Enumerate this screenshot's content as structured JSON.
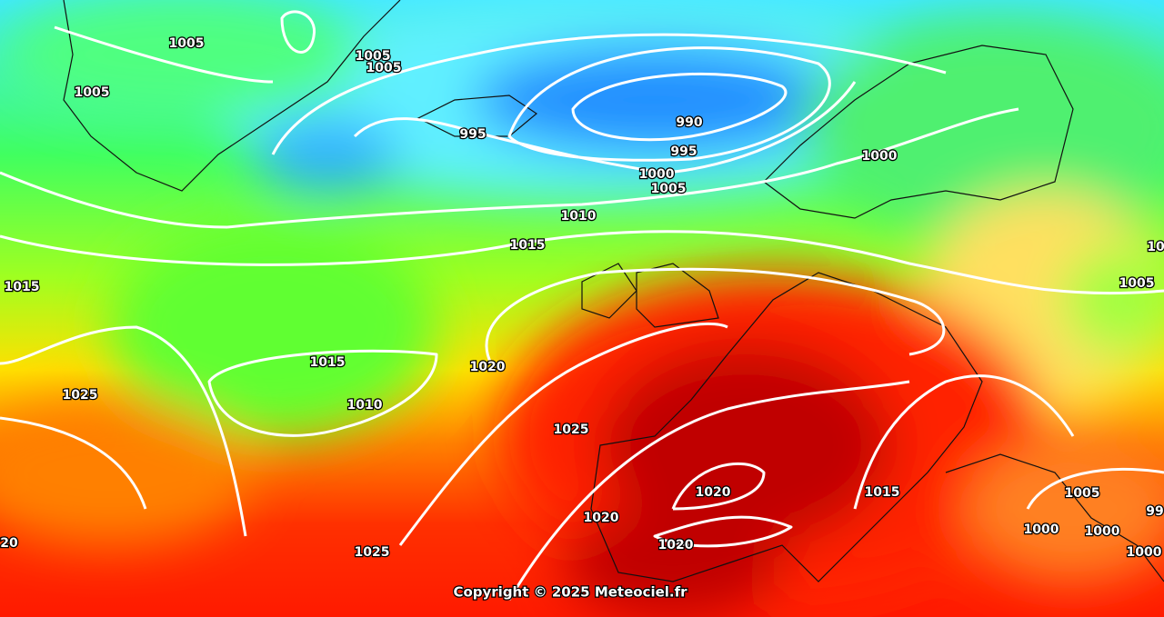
{
  "map": {
    "isobar_labels": [
      "1005",
      "1005",
      "1005",
      "1005",
      "995",
      "990",
      "995",
      "1000",
      "1005",
      "1000",
      "1010",
      "1015",
      "1015",
      "1005",
      "1015",
      "1020",
      "1010",
      "1025",
      "1025",
      "1020",
      "1015",
      "1020",
      "1020",
      "1025",
      "1005",
      "1000",
      "1000",
      "99",
      "1000",
      "20",
      "10"
    ],
    "copyright": "Copyright © 2025 Meteociel.fr"
  }
}
